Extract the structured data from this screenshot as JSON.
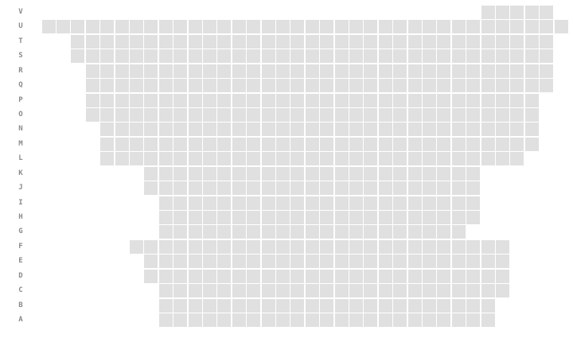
{
  "seat_map": {
    "seat_color": "#e0e0e0",
    "label_color": "#8a8a8a",
    "background": "#ffffff",
    "rows": [
      {
        "label": "V",
        "first_seat": 31,
        "seat_count": 5
      },
      {
        "label": "U",
        "first_seat": 1,
        "seat_count": 36
      },
      {
        "label": "T",
        "first_seat": 3,
        "seat_count": 33
      },
      {
        "label": "S",
        "first_seat": 3,
        "seat_count": 33
      },
      {
        "label": "R",
        "first_seat": 4,
        "seat_count": 32
      },
      {
        "label": "Q",
        "first_seat": 4,
        "seat_count": 32
      },
      {
        "label": "P",
        "first_seat": 4,
        "seat_count": 31
      },
      {
        "label": "O",
        "first_seat": 4,
        "seat_count": 31
      },
      {
        "label": "N",
        "first_seat": 5,
        "seat_count": 30
      },
      {
        "label": "M",
        "first_seat": 5,
        "seat_count": 30
      },
      {
        "label": "L",
        "first_seat": 5,
        "seat_count": 29
      },
      {
        "label": "K",
        "first_seat": 8,
        "seat_count": 23
      },
      {
        "label": "J",
        "first_seat": 8,
        "seat_count": 23
      },
      {
        "label": "I",
        "first_seat": 9,
        "seat_count": 22
      },
      {
        "label": "H",
        "first_seat": 9,
        "seat_count": 22
      },
      {
        "label": "G",
        "first_seat": 9,
        "seat_count": 21
      },
      {
        "label": "F",
        "first_seat": 7,
        "seat_count": 26
      },
      {
        "label": "E",
        "first_seat": 8,
        "seat_count": 25
      },
      {
        "label": "D",
        "first_seat": 8,
        "seat_count": 25
      },
      {
        "label": "C",
        "first_seat": 9,
        "seat_count": 24
      },
      {
        "label": "B",
        "first_seat": 9,
        "seat_count": 23
      },
      {
        "label": "A",
        "first_seat": 9,
        "seat_count": 23
      }
    ]
  }
}
